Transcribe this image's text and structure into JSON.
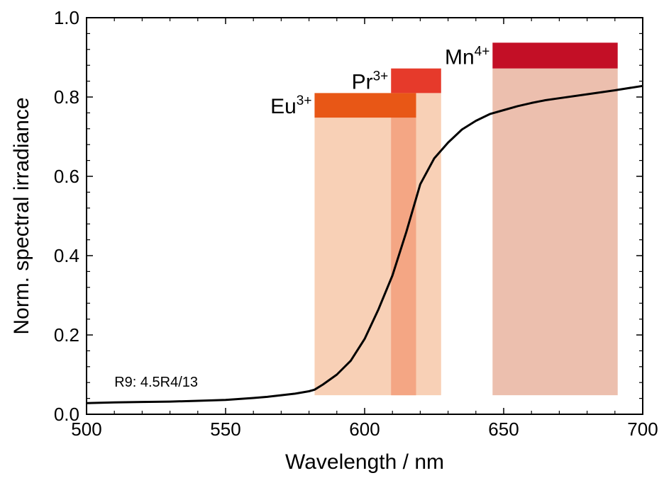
{
  "chart_data": {
    "type": "line",
    "title": "",
    "xlabel": "Wavelength / nm",
    "ylabel": "Norm. spectral irradiance",
    "xlim": [
      500,
      700
    ],
    "ylim": [
      0.0,
      1.0
    ],
    "x_ticks": [
      500,
      550,
      600,
      650,
      700
    ],
    "y_ticks": [
      0.0,
      0.2,
      0.4,
      0.6,
      0.8,
      1.0
    ],
    "x_tick_labels": [
      "500",
      "550",
      "600",
      "650",
      "700"
    ],
    "y_tick_labels": [
      "0.0",
      "0.2",
      "0.4",
      "0.6",
      "0.8",
      "1.0"
    ],
    "grid": false,
    "annotation": "R9: 4.5R4/13",
    "series": [
      {
        "color": "#000000",
        "x": [
          500,
          510,
          520,
          530,
          540,
          550,
          560,
          565,
          570,
          575,
          580,
          582,
          585,
          590,
          595,
          600,
          605,
          610,
          615,
          620,
          625,
          630,
          635,
          640,
          645,
          650,
          655,
          660,
          665,
          670,
          680,
          690,
          700
        ],
        "y": [
          0.028,
          0.03,
          0.031,
          0.032,
          0.034,
          0.036,
          0.041,
          0.044,
          0.048,
          0.052,
          0.058,
          0.062,
          0.075,
          0.1,
          0.135,
          0.19,
          0.265,
          0.35,
          0.46,
          0.58,
          0.645,
          0.685,
          0.718,
          0.74,
          0.757,
          0.767,
          0.777,
          0.785,
          0.792,
          0.797,
          0.807,
          0.817,
          0.828
        ]
      }
    ],
    "emitter_bands": [
      {
        "label": "Eu",
        "sup": "3+",
        "x_start": 582,
        "x_end": 618.5,
        "y_top": 0.81,
        "y_mid": 0.748,
        "y_bottom": 0.048,
        "bar_color": "#e85716",
        "fill_color": "#f8d0b6"
      },
      {
        "label": "Pr",
        "sup": "3+",
        "x_start": 609.5,
        "x_end": 627.5,
        "y_top": 0.872,
        "y_mid": 0.81,
        "y_bottom": 0.048,
        "bar_color": "#e63a2b",
        "fill_color": "#f8d0b6"
      },
      {
        "label": "Mn",
        "sup": "4+",
        "x_start": 646,
        "x_end": 691,
        "y_top": 0.937,
        "y_mid": 0.872,
        "y_bottom": 0.048,
        "bar_color": "#c30f26",
        "fill_color": "#ecbfae"
      }
    ],
    "overlap_color": "#f4a684"
  }
}
